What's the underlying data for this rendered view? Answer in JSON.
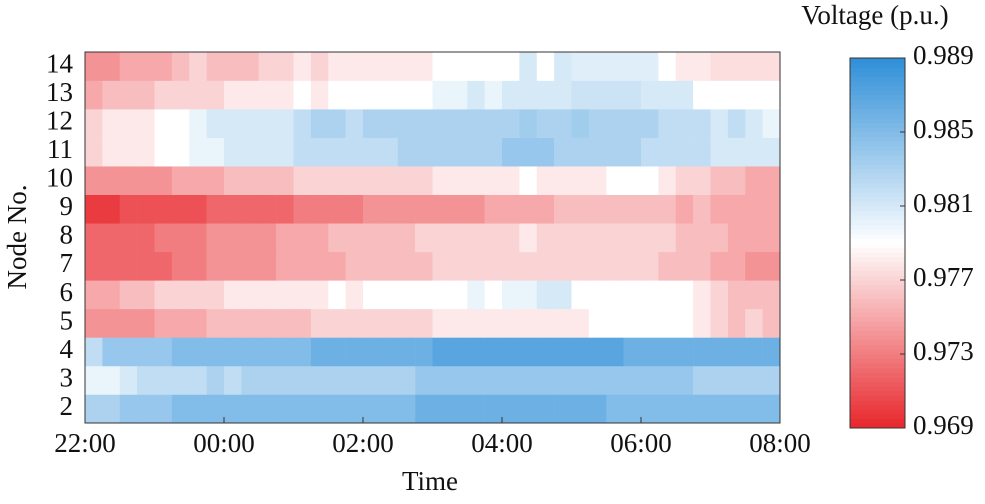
{
  "chart_data": {
    "type": "heatmap",
    "title": "Voltage (p.u.)",
    "xlabel": "Time",
    "ylabel": "Node No.",
    "x": [
      0,
      0.25,
      0.5,
      0.75,
      1,
      1.25,
      1.5,
      1.75,
      2,
      2.25,
      2.5,
      2.75,
      3,
      3.25,
      3.5,
      3.75,
      4,
      4.25,
      4.5,
      4.75,
      5,
      5.25,
      5.5,
      5.75,
      6,
      6.25,
      6.5,
      6.75,
      7,
      7.25,
      7.5,
      7.75,
      8,
      8.25,
      8.5,
      8.75,
      9,
      9.25,
      9.5,
      9.75
    ],
    "xlim": [
      0,
      10
    ],
    "xticks": [
      {
        "value": 0,
        "label": "22:00"
      },
      {
        "value": 2,
        "label": "00:00"
      },
      {
        "value": 4,
        "label": "02:00"
      },
      {
        "value": 6,
        "label": "04:00"
      },
      {
        "value": 8,
        "label": "06:00"
      },
      {
        "value": 10,
        "label": "08:00"
      }
    ],
    "categories": [
      "2",
      "3",
      "4",
      "5",
      "6",
      "7",
      "8",
      "9",
      "10",
      "11",
      "12",
      "13",
      "14"
    ],
    "values": [
      [
        0.983,
        0.983,
        0.984,
        0.984,
        0.984,
        0.985,
        0.985,
        0.985,
        0.985,
        0.985,
        0.985,
        0.985,
        0.985,
        0.985,
        0.985,
        0.985,
        0.985,
        0.985,
        0.985,
        0.986,
        0.986,
        0.986,
        0.986,
        0.986,
        0.986,
        0.986,
        0.986,
        0.986,
        0.986,
        0.986,
        0.985,
        0.985,
        0.985,
        0.985,
        0.985,
        0.985,
        0.985,
        0.985,
        0.985,
        0.985
      ],
      [
        0.98,
        0.98,
        0.981,
        0.982,
        0.982,
        0.982,
        0.982,
        0.983,
        0.982,
        0.983,
        0.983,
        0.983,
        0.983,
        0.983,
        0.983,
        0.983,
        0.983,
        0.983,
        0.983,
        0.984,
        0.984,
        0.984,
        0.984,
        0.984,
        0.984,
        0.984,
        0.984,
        0.984,
        0.984,
        0.984,
        0.984,
        0.984,
        0.984,
        0.984,
        0.984,
        0.983,
        0.983,
        0.983,
        0.983,
        0.983
      ],
      [
        0.982,
        0.984,
        0.984,
        0.984,
        0.984,
        0.985,
        0.985,
        0.985,
        0.985,
        0.985,
        0.985,
        0.985,
        0.985,
        0.986,
        0.986,
        0.986,
        0.986,
        0.986,
        0.986,
        0.986,
        0.987,
        0.987,
        0.987,
        0.987,
        0.987,
        0.987,
        0.987,
        0.987,
        0.987,
        0.987,
        0.987,
        0.986,
        0.986,
        0.986,
        0.986,
        0.986,
        0.986,
        0.986,
        0.986,
        0.986
      ],
      [
        0.974,
        0.974,
        0.974,
        0.974,
        0.975,
        0.975,
        0.975,
        0.976,
        0.976,
        0.976,
        0.976,
        0.976,
        0.976,
        0.977,
        0.977,
        0.977,
        0.977,
        0.977,
        0.977,
        0.977,
        0.978,
        0.978,
        0.978,
        0.978,
        0.978,
        0.978,
        0.978,
        0.978,
        0.978,
        0.979,
        0.979,
        0.979,
        0.979,
        0.979,
        0.979,
        0.978,
        0.977,
        0.976,
        0.977,
        0.976
      ],
      [
        0.975,
        0.975,
        0.976,
        0.976,
        0.977,
        0.977,
        0.977,
        0.977,
        0.978,
        0.978,
        0.978,
        0.978,
        0.978,
        0.978,
        0.979,
        0.978,
        0.979,
        0.979,
        0.979,
        0.979,
        0.979,
        0.979,
        0.98,
        0.979,
        0.98,
        0.98,
        0.981,
        0.981,
        0.979,
        0.979,
        0.979,
        0.979,
        0.979,
        0.979,
        0.979,
        0.978,
        0.977,
        0.976,
        0.976,
        0.976
      ],
      [
        0.972,
        0.972,
        0.972,
        0.972,
        0.972,
        0.973,
        0.973,
        0.974,
        0.974,
        0.974,
        0.974,
        0.975,
        0.975,
        0.975,
        0.975,
        0.976,
        0.976,
        0.976,
        0.976,
        0.976,
        0.977,
        0.977,
        0.977,
        0.977,
        0.977,
        0.977,
        0.977,
        0.977,
        0.977,
        0.977,
        0.977,
        0.977,
        0.977,
        0.976,
        0.976,
        0.976,
        0.975,
        0.975,
        0.974,
        0.974
      ],
      [
        0.972,
        0.972,
        0.972,
        0.972,
        0.973,
        0.973,
        0.973,
        0.974,
        0.974,
        0.974,
        0.974,
        0.975,
        0.975,
        0.975,
        0.976,
        0.976,
        0.976,
        0.976,
        0.976,
        0.977,
        0.977,
        0.977,
        0.977,
        0.977,
        0.977,
        0.978,
        0.977,
        0.977,
        0.977,
        0.977,
        0.977,
        0.977,
        0.977,
        0.977,
        0.976,
        0.976,
        0.976,
        0.975,
        0.975,
        0.975
      ],
      [
        0.97,
        0.97,
        0.971,
        0.971,
        0.971,
        0.971,
        0.971,
        0.972,
        0.972,
        0.972,
        0.972,
        0.972,
        0.973,
        0.973,
        0.973,
        0.973,
        0.974,
        0.974,
        0.974,
        0.974,
        0.974,
        0.974,
        0.974,
        0.975,
        0.975,
        0.975,
        0.975,
        0.976,
        0.976,
        0.976,
        0.976,
        0.976,
        0.976,
        0.976,
        0.975,
        0.976,
        0.975,
        0.975,
        0.975,
        0.975
      ],
      [
        0.974,
        0.974,
        0.974,
        0.974,
        0.974,
        0.975,
        0.975,
        0.975,
        0.976,
        0.976,
        0.976,
        0.976,
        0.977,
        0.977,
        0.977,
        0.977,
        0.977,
        0.977,
        0.977,
        0.977,
        0.978,
        0.978,
        0.978,
        0.978,
        0.978,
        0.979,
        0.978,
        0.978,
        0.978,
        0.978,
        0.979,
        0.979,
        0.979,
        0.978,
        0.977,
        0.977,
        0.976,
        0.976,
        0.975,
        0.975
      ],
      [
        0.977,
        0.978,
        0.978,
        0.978,
        0.979,
        0.979,
        0.98,
        0.98,
        0.981,
        0.981,
        0.981,
        0.981,
        0.982,
        0.982,
        0.982,
        0.982,
        0.982,
        0.982,
        0.983,
        0.983,
        0.983,
        0.983,
        0.983,
        0.983,
        0.984,
        0.984,
        0.984,
        0.983,
        0.983,
        0.983,
        0.983,
        0.983,
        0.982,
        0.982,
        0.982,
        0.982,
        0.981,
        0.981,
        0.981,
        0.981
      ],
      [
        0.977,
        0.978,
        0.978,
        0.978,
        0.979,
        0.979,
        0.98,
        0.981,
        0.981,
        0.981,
        0.981,
        0.981,
        0.982,
        0.983,
        0.983,
        0.982,
        0.983,
        0.983,
        0.983,
        0.983,
        0.983,
        0.983,
        0.983,
        0.983,
        0.983,
        0.9835,
        0.983,
        0.983,
        0.9835,
        0.983,
        0.983,
        0.983,
        0.983,
        0.982,
        0.982,
        0.982,
        0.981,
        0.982,
        0.981,
        0.98
      ],
      [
        0.975,
        0.976,
        0.976,
        0.976,
        0.977,
        0.977,
        0.977,
        0.977,
        0.978,
        0.978,
        0.978,
        0.978,
        0.979,
        0.978,
        0.979,
        0.979,
        0.979,
        0.979,
        0.979,
        0.979,
        0.98,
        0.98,
        0.981,
        0.98,
        0.981,
        0.981,
        0.981,
        0.981,
        0.9815,
        0.9815,
        0.9815,
        0.9815,
        0.981,
        0.981,
        0.981,
        0.979,
        0.979,
        0.979,
        0.979,
        0.979
      ],
      [
        0.974,
        0.974,
        0.975,
        0.975,
        0.975,
        0.976,
        0.977,
        0.976,
        0.976,
        0.976,
        0.977,
        0.977,
        0.978,
        0.977,
        0.978,
        0.978,
        0.978,
        0.978,
        0.978,
        0.978,
        0.979,
        0.979,
        0.979,
        0.979,
        0.979,
        0.981,
        0.979,
        0.981,
        0.9805,
        0.9805,
        0.9805,
        0.9805,
        0.9805,
        0.979,
        0.978,
        0.978,
        0.9775,
        0.9775,
        0.9775,
        0.9775
      ]
    ],
    "clim": [
      0.969,
      0.989
    ],
    "cticks": [
      0.969,
      0.973,
      0.977,
      0.981,
      0.985,
      0.989
    ],
    "colors": [
      "#e8262b",
      "#ffffff",
      "#2f8fd8"
    ]
  }
}
